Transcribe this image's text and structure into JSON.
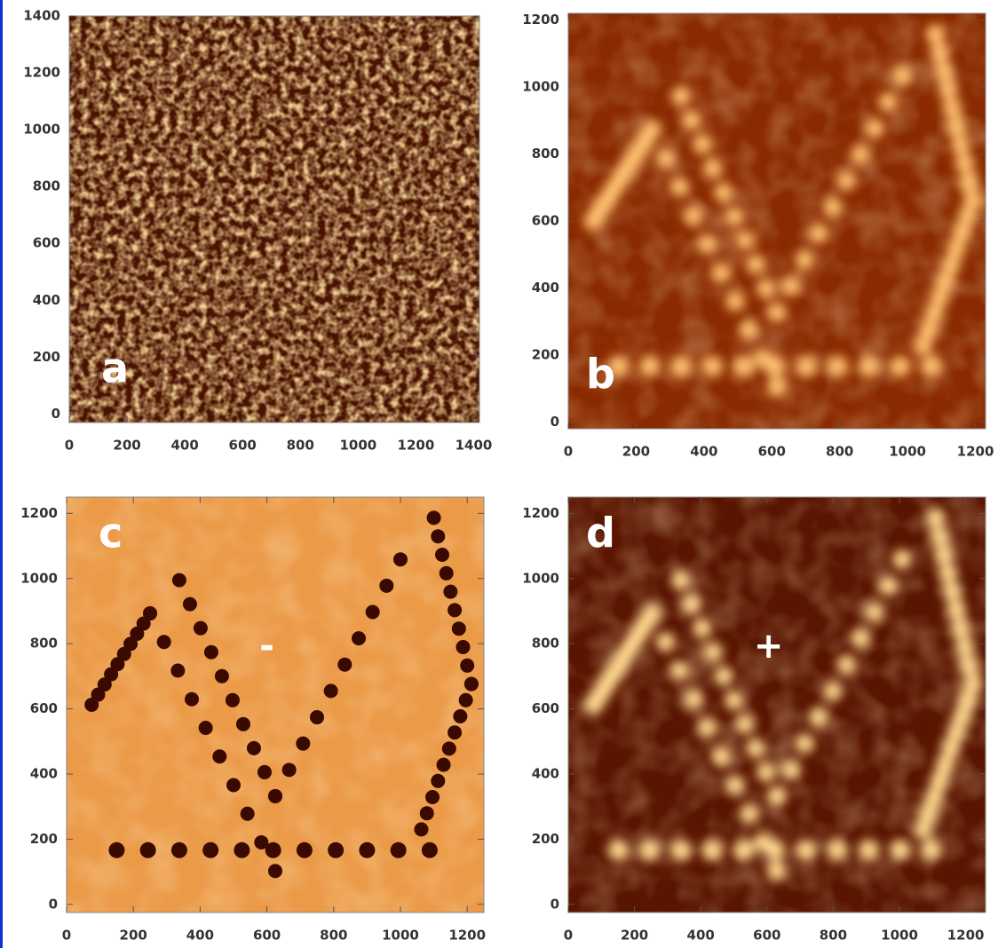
{
  "panels": [
    {
      "label": "a",
      "xlim": [
        0,
        1420
      ],
      "ylim": [
        -30,
        1400
      ],
      "xticks": [
        0,
        200,
        400,
        600,
        800,
        1000,
        1200,
        1400
      ],
      "yticks": [
        0,
        200,
        400,
        600,
        800,
        1000,
        1200,
        1400
      ]
    },
    {
      "label": "b",
      "xlim": [
        0,
        1230
      ],
      "ylim": [
        -20,
        1220
      ],
      "xticks": [
        0,
        200,
        400,
        600,
        800,
        1000,
        1200
      ],
      "yticks": [
        0,
        200,
        400,
        600,
        800,
        1000,
        1200
      ]
    },
    {
      "label": "c",
      "annotation": "-",
      "xlim": [
        0,
        1250
      ],
      "ylim": [
        -25,
        1250
      ],
      "xticks": [
        0,
        200,
        400,
        600,
        800,
        1000,
        1200
      ],
      "yticks": [
        0,
        200,
        400,
        600,
        800,
        1000,
        1200
      ]
    },
    {
      "label": "d",
      "annotation": "+",
      "xlim": [
        0,
        1260
      ],
      "ylim": [
        -25,
        1250
      ],
      "xticks": [
        0,
        200,
        400,
        600,
        800,
        1000,
        1200
      ],
      "yticks": [
        0,
        200,
        400,
        600,
        800,
        1000,
        1200
      ]
    }
  ]
}
